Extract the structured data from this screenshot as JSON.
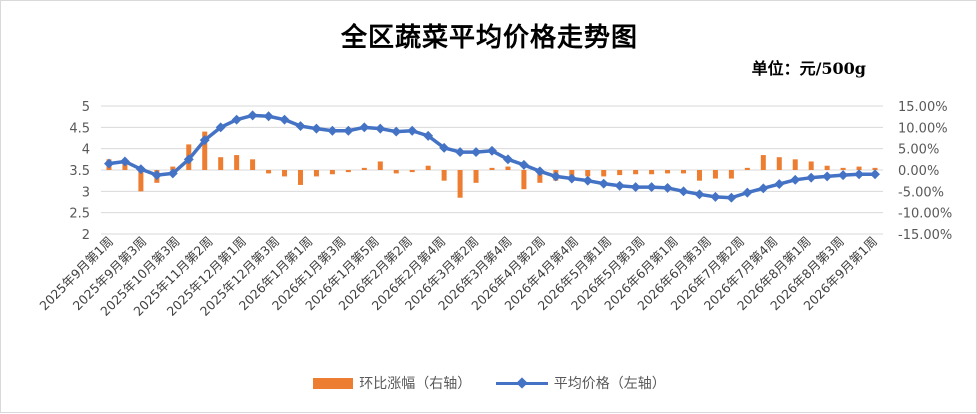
{
  "page": {
    "title": "全区蔬菜平均价格走势图",
    "unit": "单位：元/500g"
  },
  "chart_data": {
    "type": "bar+line",
    "title": "全区蔬菜平均价格走势图",
    "unit": "单位：元/500g",
    "colors": {
      "bar": "#ed7d31",
      "line": "#4472c4",
      "grid": "#d9d9d9"
    },
    "y_left": {
      "min": 2,
      "max": 5,
      "step": 0.5,
      "ticks": [
        "5",
        "4.5",
        "4",
        "3.5",
        "3",
        "2.5",
        "2"
      ]
    },
    "y_right": {
      "min": -15,
      "max": 15,
      "step": 5,
      "ticks": [
        "15.00%",
        "10.00%",
        "5.00%",
        "0.00%",
        "-5.00%",
        "-10.00%",
        "-15.00%"
      ]
    },
    "grid": "horizontal",
    "legend_position": "bottom",
    "x_labels": [
      "2025年9月第1周",
      "2025年9月第3周",
      "2025年10月第3周",
      "2025年11月第2周",
      "2025年12月第1周",
      "2025年12月第3周",
      "2026年1月第1周",
      "2026年1月第3周",
      "2026年1月第5周",
      "2026年2月第2周",
      "2026年2月第4周",
      "2026年3月第2周",
      "2026年3月第4周",
      "2026年4月第2周",
      "2026年4月第4周",
      "2026年5月第1周",
      "2026年5月第3周",
      "2026年6月第1周",
      "2026年6月第3周",
      "2026年7月第2周",
      "2026年7月第4周",
      "2026年8月第1周",
      "2026年8月第3周",
      "2026年9月第1周"
    ],
    "series": [
      {
        "name": "环比涨幅（右轴）",
        "type": "bar",
        "axis": "right",
        "values": [
          2.5,
          1.5,
          -5.0,
          -3.0,
          0.8,
          6.0,
          9.0,
          3.0,
          3.5,
          2.5,
          -0.8,
          -1.5,
          -3.5,
          -1.5,
          -1.0,
          -0.5,
          0.5,
          2.0,
          -0.8,
          -0.5,
          1.0,
          -2.5,
          -6.5,
          -3.0,
          0.5,
          0.8,
          -4.5,
          -3.0,
          -2.5,
          -2.0,
          -1.5,
          -1.5,
          -1.2,
          -1.0,
          -1.0,
          -0.8,
          -0.8,
          -2.5,
          -2.0,
          -2.0,
          0.5,
          3.5,
          3.0,
          2.5,
          2.0,
          1.0,
          0.5,
          0.8,
          0.5
        ]
      },
      {
        "name": "平均价格（左轴）",
        "type": "line",
        "axis": "left",
        "values": [
          3.65,
          3.7,
          3.52,
          3.38,
          3.42,
          3.75,
          4.2,
          4.5,
          4.68,
          4.78,
          4.76,
          4.68,
          4.53,
          4.47,
          4.42,
          4.42,
          4.5,
          4.47,
          4.4,
          4.42,
          4.3,
          4.02,
          3.92,
          3.92,
          3.95,
          3.75,
          3.62,
          3.47,
          3.35,
          3.3,
          3.25,
          3.18,
          3.13,
          3.1,
          3.1,
          3.08,
          3.0,
          2.93,
          2.87,
          2.85,
          2.97,
          3.07,
          3.17,
          3.27,
          3.32,
          3.35,
          3.38,
          3.4,
          3.4
        ]
      }
    ]
  }
}
